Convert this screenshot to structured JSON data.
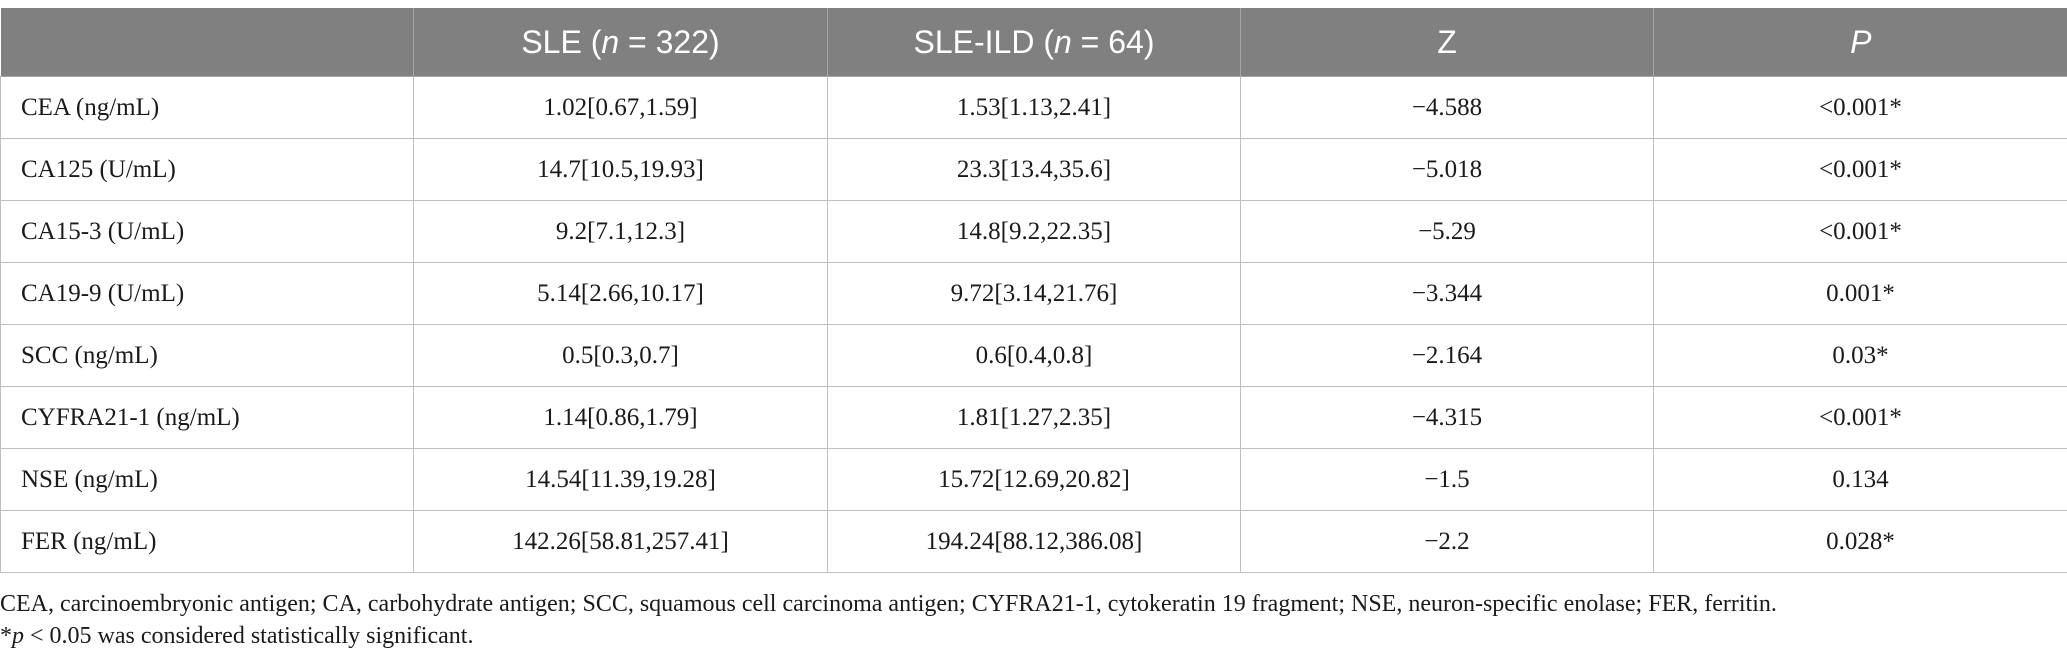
{
  "table": {
    "headers": [
      {
        "pre": "",
        "italic": "",
        "post": ""
      },
      {
        "pre": "SLE (",
        "italic": "n",
        "post": " = 322)"
      },
      {
        "pre": "SLE-ILD (",
        "italic": "n",
        "post": " = 64)"
      },
      {
        "pre": "Z",
        "italic": "",
        "post": ""
      },
      {
        "pre": "",
        "italic": "P",
        "post": ""
      }
    ],
    "rows": [
      [
        "CEA (ng/mL)",
        "1.02[0.67,1.59]",
        "1.53[1.13,2.41]",
        "−4.588",
        "<0.001*"
      ],
      [
        "CA125 (U/mL)",
        "14.7[10.5,19.93]",
        "23.3[13.4,35.6]",
        "−5.018",
        "<0.001*"
      ],
      [
        "CA15-3 (U/mL)",
        "9.2[7.1,12.3]",
        "14.8[9.2,22.35]",
        "−5.29",
        "<0.001*"
      ],
      [
        "CA19-9 (U/mL)",
        "5.14[2.66,10.17]",
        "9.72[3.14,21.76]",
        "−3.344",
        "0.001*"
      ],
      [
        "SCC (ng/mL)",
        "0.5[0.3,0.7]",
        "0.6[0.4,0.8]",
        "−2.164",
        "0.03*"
      ],
      [
        "CYFRA21-1 (ng/mL)",
        "1.14[0.86,1.79]",
        "1.81[1.27,2.35]",
        "−4.315",
        "<0.001*"
      ],
      [
        "NSE (ng/mL)",
        "14.54[11.39,19.28]",
        "15.72[12.69,20.82]",
        "−1.5",
        "0.134"
      ],
      [
        "FER (ng/mL)",
        "142.26[58.81,257.41]",
        "194.24[88.12,386.08]",
        "−2.2",
        "0.028*"
      ]
    ]
  },
  "footnotes": {
    "abbreviations": "CEA, carcinoembryonic antigen; CA, carbohydrate antigen; SCC, squamous cell carcinoma antigen; CYFRA21-1, cytokeratin 19 fragment; NSE, neuron-specific enolase; FER, ferritin.",
    "significance_prefix": "*",
    "significance_italic": "p",
    "significance_text": " < 0.05 was considered statistically significant."
  }
}
